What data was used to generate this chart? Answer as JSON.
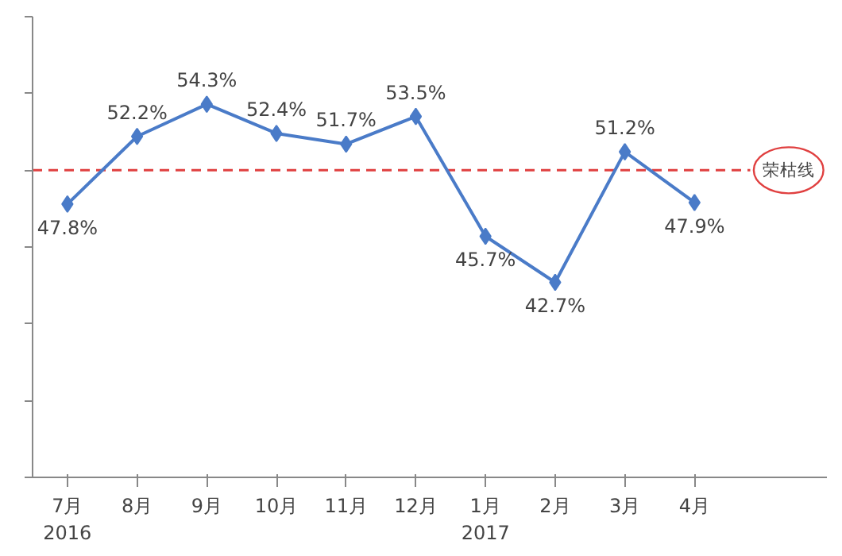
{
  "chart_data": {
    "type": "line",
    "categories": [
      "7月\n2016",
      "8月",
      "9月",
      "10月",
      "11月",
      "12月",
      "1月\n2017",
      "2月",
      "3月",
      "4月"
    ],
    "series": [
      {
        "color": "#4a7bc8",
        "values": [
          47.8,
          52.2,
          54.3,
          52.4,
          51.7,
          53.5,
          45.7,
          42.7,
          51.2,
          47.9
        ],
        "value_labels": [
          "47.8%",
          "52.2%",
          "54.3%",
          "52.4%",
          "51.7%",
          "53.5%",
          "45.7%",
          "42.7%",
          "51.2%",
          "47.9%"
        ]
      }
    ],
    "ylim": [
      30,
      60
    ],
    "yticks": [
      {
        "value": 30,
        "label": null
      },
      {
        "value": 35,
        "label": null
      },
      {
        "value": 40,
        "label": null
      },
      {
        "value": 45,
        "label": null
      },
      {
        "value": 50,
        "label": null
      },
      {
        "value": 55,
        "label": null
      },
      {
        "value": 60,
        "label": null
      }
    ],
    "tick_labels": "x",
    "marker": "diamond",
    "line_style": "solid",
    "grid": false,
    "ref_lines": [
      {
        "axis": "y",
        "value": 50,
        "label": "荣枯线",
        "color": "#e04040",
        "line_style": "dashed"
      }
    ]
  }
}
